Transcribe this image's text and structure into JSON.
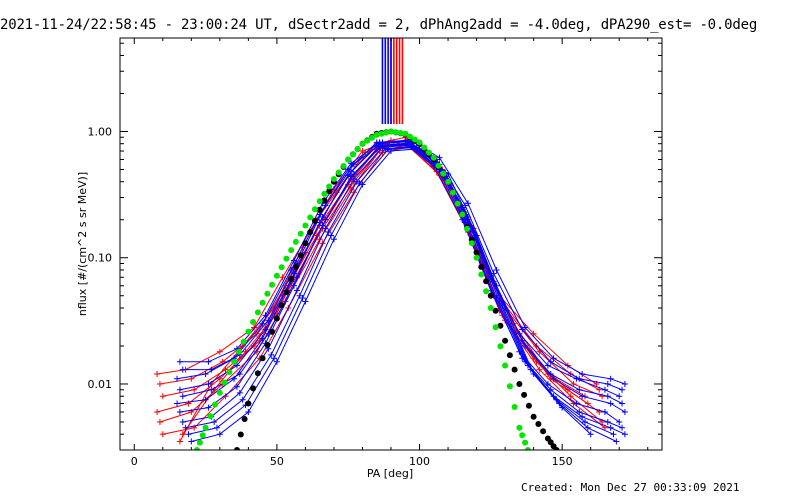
{
  "title": "2021-11-24/22:58:45 - 23:00:24 UT, dSectr2add = 2, dPhAng2add = -4.0deg, dPA290_est= -0.0deg",
  "footer": "Created: Mon Dec 27 00:33:09 2021",
  "chart_data": {
    "type": "line",
    "xlabel": "PA [deg]",
    "ylabel": "nflux [#/(cm^2 s sr MeV)]",
    "xlim": [
      -5,
      185
    ],
    "ylim": [
      0.003,
      5.5
    ],
    "yscale": "log",
    "xticks": [
      0,
      50,
      100,
      150
    ],
    "yticks": [
      {
        "value": 0.01,
        "label": "0.01"
      },
      {
        "value": 0.1,
        "label": "0.10"
      },
      {
        "value": 1.0,
        "label": "1.00"
      }
    ],
    "colors": {
      "red": "#ff0000",
      "blue": "#0000ff",
      "black": "#000000",
      "green": "#00e600"
    },
    "vertical_markers": [
      {
        "color": "#ff0000",
        "x": [
          90,
          91,
          92,
          93,
          94
        ]
      },
      {
        "color": "#0000ff",
        "x": [
          87,
          88,
          89,
          90
        ]
      }
    ],
    "series": [
      {
        "color": "#000000",
        "style": "dots",
        "x": [
          36,
          40,
          45,
          50,
          55,
          60,
          65,
          70,
          75,
          80,
          85,
          90,
          95,
          100,
          105,
          110,
          115,
          120,
          125,
          130,
          135,
          140,
          145,
          148
        ],
        "y": [
          0.003,
          0.007,
          0.016,
          0.033,
          0.068,
          0.13,
          0.24,
          0.4,
          0.6,
          0.8,
          0.96,
          1.0,
          0.95,
          0.8,
          0.6,
          0.4,
          0.22,
          0.11,
          0.05,
          0.022,
          0.01,
          0.0055,
          0.0037,
          0.003
        ]
      },
      {
        "color": "#00e600",
        "style": "dots",
        "x": [
          22,
          25,
          30,
          35,
          40,
          45,
          50,
          55,
          60,
          65,
          70,
          75,
          80,
          85,
          90,
          95,
          100,
          105,
          110,
          115,
          120,
          125,
          130,
          135,
          138
        ],
        "y": [
          0.003,
          0.0045,
          0.0085,
          0.015,
          0.026,
          0.044,
          0.072,
          0.115,
          0.18,
          0.28,
          0.42,
          0.6,
          0.8,
          0.94,
          1.0,
          0.96,
          0.82,
          0.62,
          0.4,
          0.22,
          0.1,
          0.04,
          0.014,
          0.0045,
          0.003
        ]
      },
      {
        "color": "#ff0000",
        "style": "cross",
        "x": [
          8,
          18,
          30,
          42,
          52,
          64,
          75,
          85,
          95,
          106,
          117,
          128,
          140,
          152,
          162
        ],
        "y": [
          0.012,
          0.013,
          0.018,
          0.028,
          0.07,
          0.2,
          0.45,
          0.8,
          0.9,
          0.55,
          0.2,
          0.05,
          0.025,
          0.014,
          0.01
        ]
      },
      {
        "color": "#ff0000",
        "style": "cross",
        "x": [
          9,
          20,
          31,
          43,
          53,
          65,
          76,
          86,
          96,
          107,
          118,
          129,
          141,
          153,
          163
        ],
        "y": [
          0.01,
          0.011,
          0.015,
          0.025,
          0.06,
          0.18,
          0.42,
          0.78,
          0.86,
          0.52,
          0.18,
          0.045,
          0.02,
          0.012,
          0.009
        ]
      },
      {
        "color": "#ff0000",
        "style": "cross",
        "x": [
          10,
          21,
          32,
          44,
          54,
          66,
          77,
          87,
          97,
          108,
          119,
          130,
          142,
          154,
          164
        ],
        "y": [
          0.008,
          0.009,
          0.013,
          0.022,
          0.055,
          0.17,
          0.4,
          0.75,
          0.82,
          0.5,
          0.17,
          0.04,
          0.018,
          0.01,
          0.008
        ]
      },
      {
        "color": "#ff0000",
        "style": "cross",
        "x": [
          8,
          19,
          30,
          42,
          52,
          64,
          75,
          85,
          95,
          106,
          117,
          128,
          140,
          152,
          163
        ],
        "y": [
          0.006,
          0.007,
          0.011,
          0.02,
          0.05,
          0.15,
          0.38,
          0.72,
          0.8,
          0.48,
          0.16,
          0.038,
          0.016,
          0.009,
          0.006
        ]
      },
      {
        "color": "#ff0000",
        "style": "cross",
        "x": [
          9,
          20,
          31,
          43,
          53,
          65,
          76,
          86,
          96,
          107,
          118,
          129,
          141,
          153,
          164
        ],
        "y": [
          0.005,
          0.006,
          0.01,
          0.018,
          0.045,
          0.14,
          0.35,
          0.7,
          0.78,
          0.45,
          0.15,
          0.035,
          0.015,
          0.008,
          0.005
        ]
      },
      {
        "color": "#ff0000",
        "style": "cross",
        "x": [
          10,
          21,
          32,
          44,
          54,
          66,
          77,
          87,
          97,
          108,
          119,
          130,
          142,
          154,
          165
        ],
        "y": [
          0.004,
          0.0045,
          0.008,
          0.016,
          0.04,
          0.13,
          0.33,
          0.68,
          0.76,
          0.43,
          0.14,
          0.032,
          0.013,
          0.007,
          0.0045
        ]
      },
      {
        "color": "#ff0000",
        "style": "cross",
        "x": [
          16,
          27,
          38,
          49,
          59,
          70,
          80,
          90,
          100,
          111,
          122,
          133,
          145,
          158
        ],
        "y": [
          0.0035,
          0.01,
          0.02,
          0.04,
          0.12,
          0.35,
          0.7,
          0.85,
          0.7,
          0.35,
          0.09,
          0.03,
          0.012,
          0.008
        ]
      },
      {
        "color": "#ff0000",
        "style": "cross",
        "x": [
          17,
          28,
          39,
          50,
          60,
          71,
          81,
          91,
          101,
          112,
          123,
          134,
          146,
          159
        ],
        "y": [
          0.004,
          0.009,
          0.018,
          0.036,
          0.11,
          0.33,
          0.68,
          0.83,
          0.68,
          0.33,
          0.085,
          0.026,
          0.011,
          0.007
        ]
      },
      {
        "color": "#0000ff",
        "style": "cross",
        "x": [
          15,
          25,
          35,
          45,
          55,
          65,
          75,
          85,
          95,
          105,
          115,
          125,
          135,
          145,
          155,
          165,
          170
        ],
        "y": [
          0.011,
          0.012,
          0.016,
          0.03,
          0.08,
          0.22,
          0.5,
          0.82,
          0.85,
          0.6,
          0.25,
          0.07,
          0.025,
          0.014,
          0.011,
          0.009,
          0.008
        ]
      },
      {
        "color": "#0000ff",
        "style": "cross",
        "x": [
          16,
          26,
          36,
          46,
          56,
          66,
          76,
          86,
          96,
          106,
          116,
          126,
          136,
          146,
          156,
          166,
          171
        ],
        "y": [
          0.009,
          0.01,
          0.014,
          0.027,
          0.075,
          0.21,
          0.48,
          0.8,
          0.83,
          0.57,
          0.23,
          0.065,
          0.022,
          0.012,
          0.009,
          0.008,
          0.007
        ]
      },
      {
        "color": "#0000ff",
        "style": "cross",
        "x": [
          17,
          27,
          37,
          47,
          57,
          67,
          77,
          87,
          97,
          107,
          117,
          127,
          137,
          147,
          157,
          167,
          172
        ],
        "y": [
          0.008,
          0.009,
          0.012,
          0.025,
          0.07,
          0.2,
          0.46,
          0.78,
          0.81,
          0.55,
          0.21,
          0.06,
          0.02,
          0.011,
          0.008,
          0.007,
          0.006
        ]
      },
      {
        "color": "#0000ff",
        "style": "cross",
        "x": [
          15,
          25,
          35,
          45,
          55,
          65,
          75,
          85,
          95,
          105,
          115,
          125,
          135,
          145,
          155,
          165,
          170
        ],
        "y": [
          0.007,
          0.0075,
          0.011,
          0.023,
          0.065,
          0.19,
          0.45,
          0.77,
          0.8,
          0.53,
          0.2,
          0.055,
          0.018,
          0.01,
          0.007,
          0.006,
          0.005
        ]
      },
      {
        "color": "#0000ff",
        "style": "cross",
        "x": [
          16,
          26,
          36,
          46,
          56,
          66,
          76,
          86,
          96,
          106,
          116,
          126,
          136,
          146,
          156,
          166,
          171
        ],
        "y": [
          0.006,
          0.0065,
          0.0095,
          0.021,
          0.06,
          0.18,
          0.44,
          0.76,
          0.79,
          0.52,
          0.19,
          0.05,
          0.016,
          0.009,
          0.006,
          0.005,
          0.0045
        ]
      },
      {
        "color": "#0000ff",
        "style": "cross",
        "x": [
          17,
          27,
          37,
          47,
          57,
          67,
          77,
          87,
          97,
          107,
          117,
          127,
          137,
          147,
          157,
          167,
          172
        ],
        "y": [
          0.005,
          0.0055,
          0.0085,
          0.019,
          0.055,
          0.17,
          0.42,
          0.75,
          0.78,
          0.5,
          0.18,
          0.048,
          0.015,
          0.008,
          0.0055,
          0.0045,
          0.004
        ]
      },
      {
        "color": "#0000ff",
        "style": "cross",
        "x": [
          18,
          28,
          38,
          48,
          58,
          68,
          78,
          88,
          98,
          108,
          118,
          128,
          138,
          148,
          158,
          168
        ],
        "y": [
          0.0045,
          0.005,
          0.0075,
          0.017,
          0.05,
          0.16,
          0.4,
          0.73,
          0.76,
          0.48,
          0.17,
          0.045,
          0.014,
          0.0075,
          0.005,
          0.004
        ]
      },
      {
        "color": "#0000ff",
        "style": "cross",
        "x": [
          19,
          29,
          39,
          49,
          59,
          69,
          79,
          89,
          99,
          109,
          119,
          129,
          139,
          149,
          159,
          169
        ],
        "y": [
          0.004,
          0.0045,
          0.0068,
          0.016,
          0.048,
          0.15,
          0.39,
          0.72,
          0.75,
          0.47,
          0.16,
          0.042,
          0.013,
          0.007,
          0.0045,
          0.0035
        ]
      },
      {
        "color": "#0000ff",
        "style": "cross",
        "x": [
          20,
          30,
          40,
          50,
          60,
          70,
          80,
          90,
          100,
          110,
          120,
          130,
          140,
          150,
          160
        ],
        "y": [
          0.0035,
          0.004,
          0.006,
          0.015,
          0.045,
          0.14,
          0.38,
          0.7,
          0.73,
          0.46,
          0.15,
          0.04,
          0.012,
          0.0065,
          0.004
        ]
      },
      {
        "color": "#0000ff",
        "style": "cross",
        "x": [
          17,
          27,
          37,
          47,
          57,
          67,
          77,
          87,
          97,
          107,
          117,
          127,
          137,
          147,
          157,
          167,
          172
        ],
        "y": [
          0.013,
          0.013,
          0.017,
          0.032,
          0.09,
          0.26,
          0.55,
          0.82,
          0.84,
          0.62,
          0.27,
          0.08,
          0.028,
          0.016,
          0.012,
          0.011,
          0.01
        ]
      },
      {
        "color": "#0000ff",
        "style": "cross",
        "x": [
          16,
          26,
          36,
          46,
          56,
          66,
          76,
          86,
          96,
          106,
          116,
          126,
          136,
          146,
          156,
          166,
          171
        ],
        "y": [
          0.015,
          0.015,
          0.019,
          0.035,
          0.095,
          0.27,
          0.56,
          0.82,
          0.83,
          0.6,
          0.26,
          0.075,
          0.027,
          0.015,
          0.011,
          0.01,
          0.009
        ]
      }
    ]
  }
}
